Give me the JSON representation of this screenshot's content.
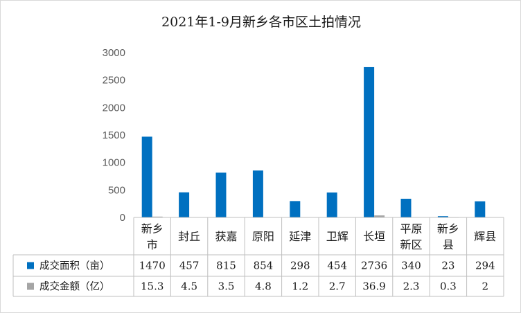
{
  "chart_data": {
    "type": "bar",
    "title": "2021年1-9月新乡各市区土拍情况",
    "categories": [
      [
        "新乡",
        "市"
      ],
      [
        "封丘"
      ],
      [
        "获嘉"
      ],
      [
        "原阳"
      ],
      [
        "延津"
      ],
      [
        "卫辉"
      ],
      [
        "长垣"
      ],
      [
        "平原",
        "新区"
      ],
      [
        "新乡",
        "县"
      ],
      [
        "辉县"
      ]
    ],
    "series": [
      {
        "name": "成交面积（亩）",
        "color": "#0070c0",
        "values": [
          1470,
          457,
          815,
          854,
          298,
          454,
          2736,
          340,
          23,
          294
        ],
        "labels": [
          "1470",
          "457",
          "815",
          "854",
          "298",
          "454",
          "2736",
          "340",
          "23",
          "294"
        ]
      },
      {
        "name": "成交金额（亿）",
        "color": "#a5a5a5",
        "values": [
          15.3,
          4.5,
          3.5,
          4.8,
          1.2,
          2.7,
          36.9,
          2.3,
          0.3,
          2
        ],
        "labels": [
          "15.3",
          "4.5",
          "3.5",
          "4.8",
          "1.2",
          "2.7",
          "36.9",
          "2.3",
          "0.3",
          "2"
        ]
      }
    ],
    "ylim": [
      0,
      3000
    ],
    "yticks": [
      "0",
      "500",
      "1000",
      "1500",
      "2000",
      "2500",
      "3000"
    ],
    "grid": false,
    "legend": "data-table"
  }
}
